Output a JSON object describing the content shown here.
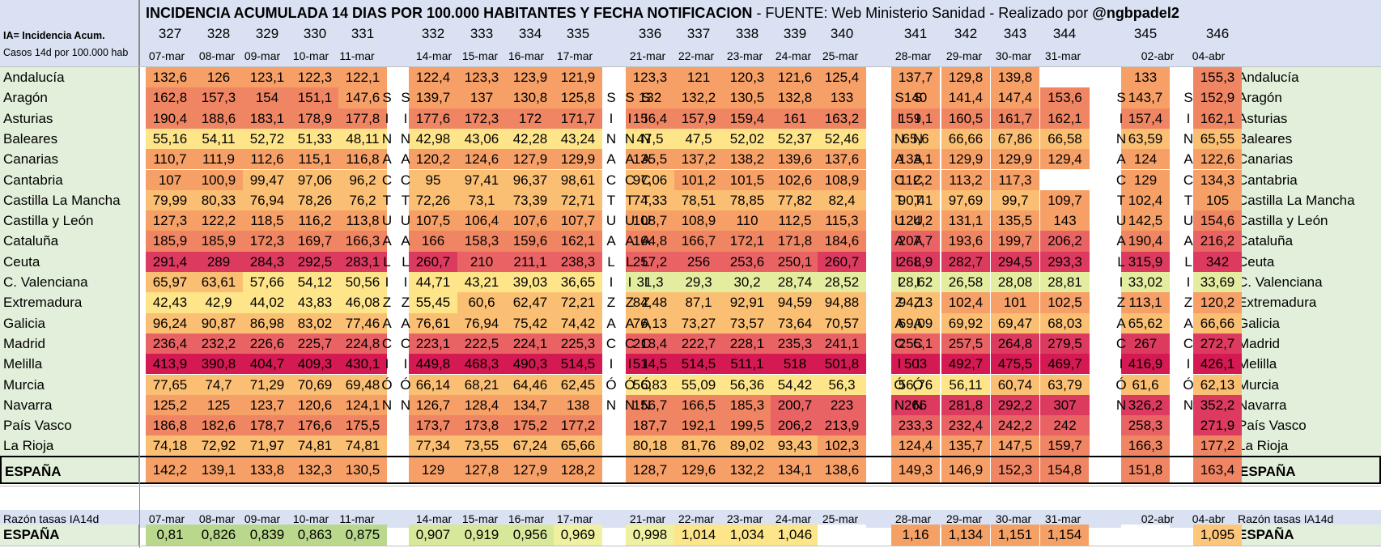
{
  "title_bold": "INCIDENCIA ACUMULADA 14 DIAS POR 100.000 HABITANTES Y FECHA NOTIFICACION",
  "title_normal": " - FUENTE: Web Ministerio Sanidad - Realizado por ",
  "title_handle": "@ngbpadel2",
  "legend_line1": "IA= Incidencia Acum.",
  "legend_line2": "Casos 14d  por 100.000 hab",
  "ratio_label": "Razón tasas IA14d",
  "day_numbers": [
    "327",
    "328",
    "329",
    "330",
    "331",
    "332",
    "333",
    "334",
    "335",
    "336",
    "337",
    "338",
    "339",
    "340",
    "341",
    "342",
    "343",
    "344",
    "345",
    "346"
  ],
  "dates": [
    "07-mar",
    "08-mar",
    "09-mar",
    "10-mar",
    "11-mar",
    "14-mar",
    "15-mar",
    "16-mar",
    "17-mar",
    "21-mar",
    "22-mar",
    "23-mar",
    "24-mar",
    "25-mar",
    "28-mar",
    "29-mar",
    "30-mar",
    "31-mar",
    "02-abr",
    "04-abr"
  ],
  "weekend_letters": [
    "S",
    "I",
    "N",
    "A",
    "C",
    "T",
    "U",
    "A",
    "L",
    "I",
    "Z",
    "A",
    "C",
    "I",
    "Ó",
    "N"
  ],
  "regions": [
    {
      "name": "Andalucía",
      "values": [
        "132,6",
        "126",
        "123,1",
        "122,3",
        "122,1",
        "122,4",
        "123,3",
        "123,9",
        "121,9",
        "123,3",
        "121",
        "120,3",
        "121,6",
        "125,4",
        "137,7",
        "129,8",
        "139,8",
        "",
        "133",
        "155,3"
      ]
    },
    {
      "name": "Aragón",
      "values": [
        "162,8",
        "157,3",
        "154",
        "151,1",
        "147,6",
        "139,7",
        "137",
        "130,8",
        "125,8",
        "132",
        "132,2",
        "130,5",
        "132,8",
        "133",
        "140",
        "141,4",
        "147,4",
        "153,6",
        "143,7",
        "152,9"
      ]
    },
    {
      "name": "Asturias",
      "values": [
        "190,4",
        "188,6",
        "183,1",
        "178,9",
        "177,8",
        "177,6",
        "172,3",
        "172",
        "171,7",
        "156,4",
        "157,9",
        "159,4",
        "161",
        "163,2",
        "159,1",
        "160,5",
        "161,7",
        "162,1",
        "157,4",
        "162,1"
      ]
    },
    {
      "name": "Baleares",
      "values": [
        "55,16",
        "54,11",
        "52,72",
        "51,33",
        "48,11",
        "42,98",
        "43,06",
        "42,28",
        "43,24",
        "47,5",
        "47,5",
        "52,02",
        "52,37",
        "52,46",
        "65,6",
        "66,66",
        "67,86",
        "66,58",
        "63,59",
        "65,55"
      ]
    },
    {
      "name": "Canarias",
      "values": [
        "110,7",
        "111,9",
        "112,6",
        "115,1",
        "116,8",
        "120,2",
        "124,6",
        "127,9",
        "129,9",
        "135,5",
        "137,2",
        "138,2",
        "139,6",
        "137,6",
        "133,1",
        "129,9",
        "129,9",
        "129,4",
        "124",
        "122,6"
      ]
    },
    {
      "name": "Cantabria",
      "values": [
        "107",
        "100,9",
        "99,47",
        "97,06",
        "96,2",
        "95",
        "97,41",
        "96,37",
        "98,61",
        "97,06",
        "101,2",
        "101,5",
        "102,6",
        "108,9",
        "112,2",
        "113,2",
        "117,3",
        "",
        "129",
        "134,3"
      ]
    },
    {
      "name": "Castilla La Mancha",
      "values": [
        "79,99",
        "80,33",
        "76,94",
        "78,26",
        "76,2",
        "72,26",
        "73,1",
        "73,39",
        "72,71",
        "74,33",
        "78,51",
        "78,85",
        "77,82",
        "82,4",
        "90,41",
        "97,69",
        "99,7",
        "109,7",
        "102,4",
        "105"
      ]
    },
    {
      "name": "Castilla y León",
      "values": [
        "127,3",
        "122,2",
        "118,5",
        "116,2",
        "113,8",
        "107,5",
        "106,4",
        "107,6",
        "107,7",
        "108,7",
        "108,9",
        "110",
        "112,5",
        "115,3",
        "124,2",
        "131,1",
        "135,5",
        "143",
        "142,5",
        "154,6"
      ]
    },
    {
      "name": "Cataluña",
      "values": [
        "185,9",
        "185,9",
        "172,3",
        "169,7",
        "166,3",
        "166",
        "158,3",
        "159,6",
        "162,1",
        "164,8",
        "166,7",
        "172,1",
        "171,8",
        "184,6",
        "207,7",
        "193,6",
        "199,7",
        "206,2",
        "190,4",
        "216,2"
      ]
    },
    {
      "name": "Ceuta",
      "values": [
        "291,4",
        "289",
        "284,3",
        "292,5",
        "283,1",
        "260,7",
        "210",
        "211,1",
        "238,3",
        "257,2",
        "256",
        "253,6",
        "250,1",
        "260,7",
        "268,9",
        "282,7",
        "294,5",
        "293,3",
        "315,9",
        "342"
      ]
    },
    {
      "name": "C. Valenciana",
      "values": [
        "65,97",
        "63,61",
        "57,66",
        "54,12",
        "50,56",
        "44,71",
        "43,21",
        "39,03",
        "36,65",
        "31,3",
        "29,3",
        "30,2",
        "28,74",
        "28,52",
        "28,62",
        "26,58",
        "28,08",
        "28,81",
        "33,02",
        "33,69"
      ]
    },
    {
      "name": "Extremadura",
      "values": [
        "42,43",
        "42,9",
        "44,02",
        "43,83",
        "46,08",
        "55,45",
        "60,6",
        "62,47",
        "72,21",
        "84,48",
        "87,1",
        "92,91",
        "94,59",
        "94,88",
        "94,13",
        "102,4",
        "101",
        "102,5",
        "113,1",
        "120,2"
      ]
    },
    {
      "name": "Galicia",
      "values": [
        "96,24",
        "90,87",
        "86,98",
        "83,02",
        "77,46",
        "76,61",
        "76,94",
        "75,42",
        "74,42",
        "76,13",
        "73,27",
        "73,57",
        "73,64",
        "70,57",
        "69,09",
        "69,92",
        "69,47",
        "68,03",
        "65,62",
        "66,66"
      ]
    },
    {
      "name": "Madrid",
      "values": [
        "236,4",
        "232,2",
        "226,6",
        "225,7",
        "224,8",
        "223,1",
        "222,5",
        "224,1",
        "225,3",
        "218,4",
        "222,7",
        "228,1",
        "235,3",
        "241,1",
        "255,1",
        "257,5",
        "264,8",
        "279,5",
        "267",
        "272,7"
      ]
    },
    {
      "name": "Melilla",
      "values": [
        "413,9",
        "390,8",
        "404,7",
        "409,3",
        "430,1",
        "449,8",
        "468,3",
        "490,3",
        "514,5",
        "514,5",
        "514,5",
        "511,1",
        "518",
        "501,8",
        "503",
        "492,7",
        "475,5",
        "469,7",
        "416,9",
        "426,1"
      ]
    },
    {
      "name": "Murcia",
      "values": [
        "77,65",
        "74,7",
        "71,29",
        "70,69",
        "69,48",
        "66,14",
        "68,21",
        "64,46",
        "62,45",
        "56,83",
        "55,09",
        "56,36",
        "54,42",
        "56,3",
        "56,76",
        "56,11",
        "60,74",
        "63,79",
        "61,6",
        "62,13"
      ]
    },
    {
      "name": "Navarra",
      "values": [
        "125,2",
        "125",
        "123,7",
        "120,6",
        "124,1",
        "126,7",
        "128,4",
        "134,7",
        "138",
        "156,7",
        "166,5",
        "185,3",
        "200,7",
        "223",
        "266",
        "281,8",
        "292,2",
        "307",
        "326,2",
        "352,2"
      ]
    },
    {
      "name": "País Vasco",
      "values": [
        "186,8",
        "182,6",
        "178,7",
        "176,6",
        "175,5",
        "173,7",
        "173,8",
        "175,2",
        "177,2",
        "187,7",
        "192,1",
        "199,5",
        "206,2",
        "213,9",
        "233,3",
        "232,4",
        "242,2",
        "242",
        "258,3",
        "271,9"
      ]
    },
    {
      "name": "La Rioja",
      "values": [
        "74,18",
        "72,92",
        "71,97",
        "74,81",
        "74,81",
        "77,34",
        "73,55",
        "67,24",
        "65,66",
        "80,18",
        "81,76",
        "89,02",
        "93,43",
        "102,3",
        "124,4",
        "135,7",
        "147,5",
        "159,7",
        "166,3",
        "177,2"
      ]
    }
  ],
  "espana": {
    "name": "ESPAÑA",
    "values": [
      "142,2",
      "139,1",
      "133,8",
      "132,3",
      "130,5",
      "129",
      "127,8",
      "127,9",
      "128,2",
      "128,7",
      "129,6",
      "132,2",
      "134,1",
      "138,6",
      "149,3",
      "146,9",
      "152,3",
      "154,8",
      "151,8",
      "163,4"
    ]
  },
  "ratio": {
    "name": "ESPAÑA",
    "values": [
      "0,81",
      "0,826",
      "0,839",
      "0,863",
      "0,875",
      "0,907",
      "0,919",
      "0,956",
      "0,969",
      "0,998",
      "1,014",
      "1,034",
      "1,046",
      "",
      "1,16",
      "1,134",
      "1,151",
      "1,154",
      "",
      "1,095"
    ]
  },
  "colors": {
    "header_bg": "#d9e1f2",
    "label_bg": "#e2efda",
    "white": "#ffffff",
    "scale": [
      "#e4eca0",
      "#ffe58a",
      "#fbbf74",
      "#f6a067",
      "#f08563",
      "#ea6364",
      "#dd3a60",
      "#d51952"
    ]
  }
}
